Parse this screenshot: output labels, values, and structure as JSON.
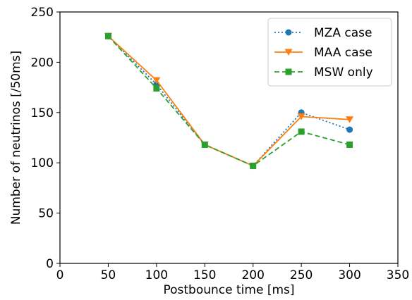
{
  "chart_data": {
    "type": "line",
    "title": "",
    "xlabel": "Postbounce time [ms]",
    "ylabel": "Number of neutrinos [/50ms]",
    "xlim": [
      0,
      350
    ],
    "ylim": [
      0,
      250
    ],
    "xticks": [
      0,
      50,
      100,
      150,
      200,
      250,
      300,
      350
    ],
    "yticks": [
      0,
      50,
      100,
      150,
      200,
      250
    ],
    "grid": false,
    "legend_position": "top-right",
    "series": [
      {
        "name": "MZA case",
        "color": "#1f77b4",
        "marker": "circle",
        "linestyle": "dotted",
        "x": [
          50,
          100,
          150,
          200,
          250,
          300
        ],
        "y": [
          226,
          178,
          118,
          97,
          150,
          133
        ]
      },
      {
        "name": "MAA case",
        "color": "#ff7f0e",
        "marker": "triangle-down",
        "linestyle": "solid",
        "x": [
          50,
          100,
          150,
          200,
          250,
          300
        ],
        "y": [
          226,
          182,
          118,
          97,
          146,
          143
        ]
      },
      {
        "name": "MSW only",
        "color": "#2ca02c",
        "marker": "square",
        "linestyle": "dashed",
        "x": [
          50,
          100,
          150,
          200,
          250,
          300
        ],
        "y": [
          226,
          174,
          118,
          97,
          131,
          118
        ]
      }
    ]
  }
}
